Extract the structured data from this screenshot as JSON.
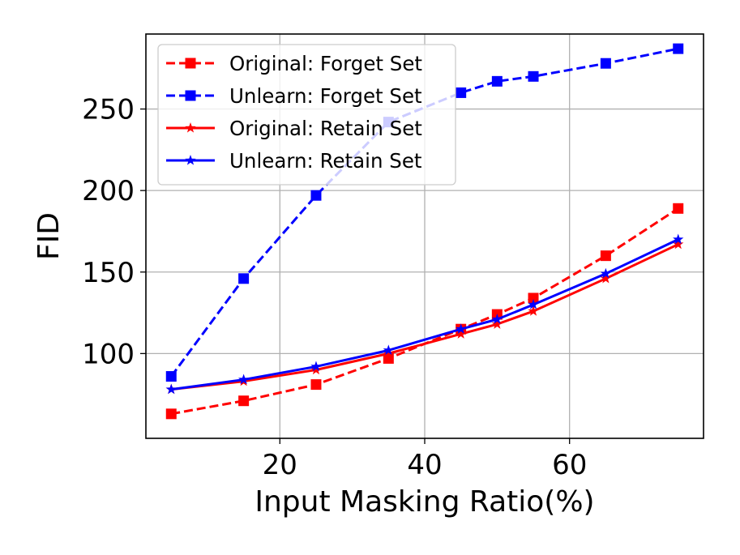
{
  "chart_data": {
    "type": "line",
    "xlabel": "Input Masking Ratio(%)",
    "ylabel": "FID",
    "xlim": [
      1.5,
      78.5
    ],
    "ylim": [
      48,
      296
    ],
    "xticks": [
      20,
      40,
      60
    ],
    "yticks": [
      100,
      150,
      200,
      250
    ],
    "grid": true,
    "legend_position": "top-left",
    "series": [
      {
        "name": "Original: Forget Set",
        "color": "#ff0000",
        "linestyle": "dashed",
        "marker": "square",
        "x": [
          5,
          15,
          25,
          35,
          45,
          50,
          55,
          65,
          75
        ],
        "y": [
          63,
          71,
          81,
          97,
          115,
          124,
          134,
          160,
          189
        ]
      },
      {
        "name": "Unlearn: Forget Set",
        "color": "#0000ff",
        "linestyle": "dashed",
        "marker": "square",
        "x": [
          5,
          15,
          25,
          35,
          45,
          50,
          55,
          65,
          75
        ],
        "y": [
          86,
          146,
          197,
          242,
          260,
          267,
          270,
          278,
          287
        ]
      },
      {
        "name": "Original: Retain Set",
        "color": "#ff0000",
        "linestyle": "solid",
        "marker": "star",
        "x": [
          5,
          15,
          25,
          35,
          45,
          50,
          55,
          65,
          75
        ],
        "y": [
          78,
          83,
          90,
          100,
          112,
          118,
          126,
          146,
          167
        ]
      },
      {
        "name": "Unlearn: Retain Set",
        "color": "#0000ff",
        "linestyle": "solid",
        "marker": "star",
        "x": [
          5,
          15,
          25,
          35,
          45,
          50,
          55,
          65,
          75
        ],
        "y": [
          78,
          84,
          92,
          102,
          115,
          121,
          130,
          149,
          170
        ]
      }
    ]
  }
}
